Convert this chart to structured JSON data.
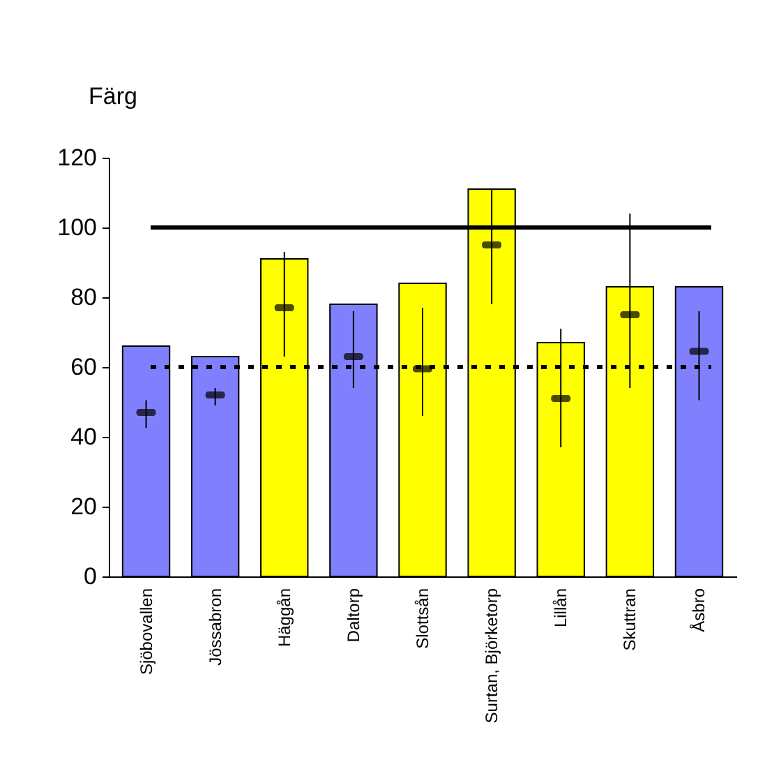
{
  "chart_data": {
    "type": "bar",
    "ylabel": "Färg",
    "categories": [
      "Sjöbovallen",
      "Jössabron",
      "Häggån",
      "Daltorp",
      "Slottsån",
      "Surtan, Björketorp",
      "Lillån",
      "Skuttran",
      "Åsbro"
    ],
    "series": [
      {
        "values": [
          66,
          63,
          91,
          78,
          84,
          111,
          67,
          83,
          83
        ],
        "colors": [
          "#8080ff",
          "#8080ff",
          "#ffff00",
          "#8080ff",
          "#ffff00",
          "#ffff00",
          "#ffff00",
          "#ffff00",
          "#8080ff"
        ]
      },
      {
        "type": "scatter",
        "color": "#000000",
        "values": [
          47,
          52,
          77,
          63,
          59.5,
          95,
          51,
          75,
          64.5
        ],
        "errors": [
          [
            42.5,
            50.5
          ],
          [
            49,
            54
          ],
          [
            63,
            93
          ],
          [
            54,
            76
          ],
          [
            46,
            77
          ],
          [
            78,
            111
          ],
          [
            37,
            71
          ],
          [
            54,
            104
          ],
          [
            50.5,
            76
          ]
        ]
      }
    ],
    "ylim": [
      0,
      120
    ],
    "yticks": [
      0,
      20,
      40,
      60,
      80,
      100,
      120
    ],
    "grid": false,
    "ref_lines": [
      {
        "axis": "y",
        "value": 100,
        "color": "#000000",
        "line_style": "solid"
      },
      {
        "axis": "y",
        "value": 60,
        "color": "#000000",
        "line_style": "dotted"
      }
    ]
  }
}
